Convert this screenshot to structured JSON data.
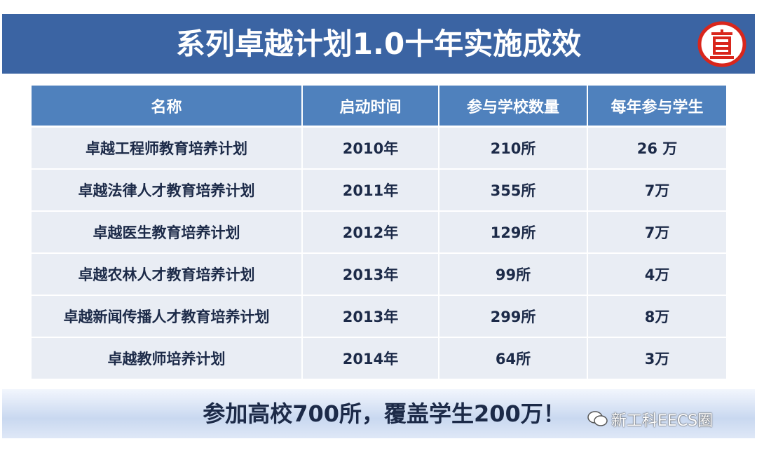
{
  "title": "系列卓越计划1.0十年实施成效",
  "table": {
    "header": [
      "名称",
      "启动时间",
      "参与学校数量",
      "每年参与学生"
    ],
    "rows": [
      [
        "卓越工程师教育培养计划",
        "2010年",
        "210所",
        "26 万"
      ],
      [
        "卓越法律人才教育培养计划",
        "2011年",
        "355所",
        "7万"
      ],
      [
        "卓越医生教育培养计划",
        "2012年",
        "129所",
        "7万"
      ],
      [
        "卓越农林人才教育培养计划",
        "2013年",
        "99所",
        "4万"
      ],
      [
        "卓越新闻传播人才教育培养计划",
        "2013年",
        "299所",
        "8万"
      ],
      [
        "卓越教师培养计划",
        "2014年",
        "64所",
        "3万"
      ]
    ]
  },
  "footer": "参加高校700所，覆盖学生200万！",
  "watermark": "新工科EECS圈"
}
